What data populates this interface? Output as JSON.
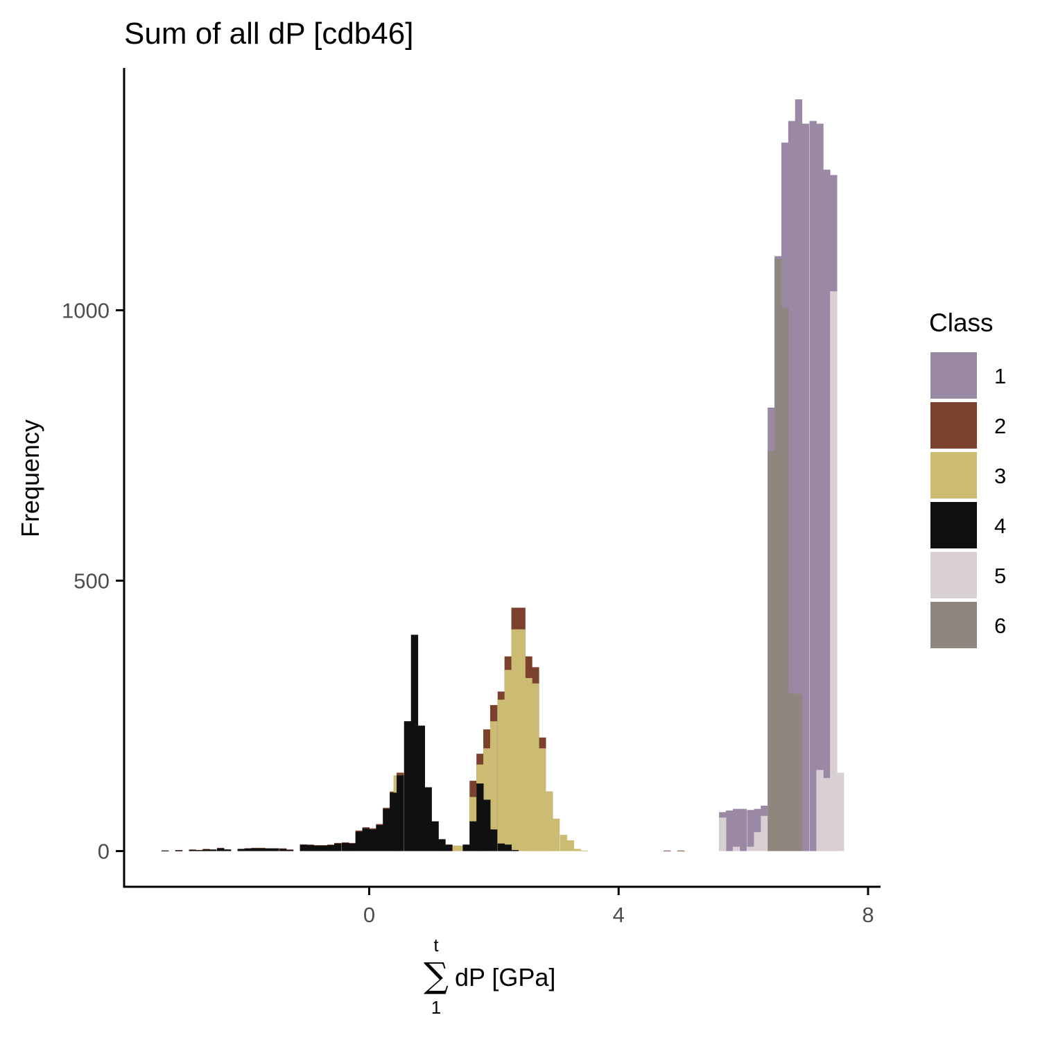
{
  "chart_data": {
    "type": "bar",
    "title": "Sum of all dP [cdb46]",
    "ylabel": "Frequency",
    "xlabel": {
      "sum_symbol": "∑",
      "upper_limit": "t",
      "lower_limit": "1",
      "text": "dP [GPa]"
    },
    "x_ticks": [
      {
        "value": 0,
        "label": "0"
      },
      {
        "value": 4,
        "label": "4"
      },
      {
        "value": 8,
        "label": "8"
      }
    ],
    "y_ticks": [
      {
        "value": 0,
        "label": "0"
      },
      {
        "value": 500,
        "label": "500"
      },
      {
        "value": 1000,
        "label": "1000"
      }
    ],
    "xlim": [
      -3.93,
      8.2
    ],
    "ylim": [
      -66,
      1448
    ],
    "bin_width": 0.111,
    "bar_mode": "overlapping (drawn in order)",
    "legend": {
      "title": "Class",
      "position": "right"
    },
    "series": [
      {
        "name": "1",
        "color": "#9b88a5",
        "bins": [
          [
            5.61,
            72
          ],
          [
            5.72,
            75
          ],
          [
            5.83,
            78
          ],
          [
            5.94,
            78
          ],
          [
            6.06,
            76
          ],
          [
            6.17,
            78
          ],
          [
            6.28,
            84
          ],
          [
            6.39,
            820
          ],
          [
            6.5,
            1100
          ],
          [
            6.61,
            1310
          ],
          [
            6.72,
            1350
          ],
          [
            6.83,
            1390
          ],
          [
            6.94,
            1345
          ],
          [
            7.06,
            1350
          ],
          [
            7.17,
            1345
          ],
          [
            7.28,
            1260
          ],
          [
            7.39,
            1250
          ]
        ]
      },
      {
        "name": "2",
        "color": "#7b412d",
        "bins": [
          [
            -3.33,
            1
          ],
          [
            -3.11,
            2
          ],
          [
            -2.89,
            3
          ],
          [
            -2.67,
            4
          ],
          [
            -2.44,
            6
          ],
          [
            -2.33,
            3
          ],
          [
            -2.11,
            4
          ],
          [
            -2.0,
            5
          ],
          [
            -1.89,
            6
          ],
          [
            -1.78,
            6
          ],
          [
            -1.67,
            5
          ],
          [
            -1.56,
            5
          ],
          [
            -1.44,
            5
          ],
          [
            -1.33,
            3
          ],
          [
            -1.11,
            12
          ],
          [
            -1.0,
            12
          ],
          [
            -0.89,
            11
          ],
          [
            -0.78,
            11
          ],
          [
            -0.67,
            12
          ],
          [
            -0.56,
            15
          ],
          [
            -0.44,
            16
          ],
          [
            -0.33,
            15
          ],
          [
            -0.22,
            38
          ],
          [
            -0.11,
            44
          ],
          [
            0.0,
            42
          ],
          [
            0.11,
            50
          ],
          [
            0.22,
            80
          ],
          [
            0.33,
            110
          ],
          [
            0.44,
            145
          ],
          [
            0.56,
            240
          ],
          [
            0.67,
            230
          ],
          [
            0.78,
            120
          ],
          [
            1.06,
            12
          ],
          [
            1.33,
            10
          ],
          [
            1.61,
            130
          ],
          [
            1.72,
            180
          ],
          [
            1.83,
            225
          ],
          [
            1.94,
            270
          ],
          [
            2.06,
            295
          ],
          [
            2.17,
            360
          ],
          [
            2.28,
            450
          ],
          [
            2.39,
            450
          ],
          [
            2.5,
            360
          ],
          [
            2.61,
            340
          ],
          [
            2.72,
            210
          ],
          [
            2.83,
            110
          ],
          [
            4.72,
            1
          ],
          [
            4.94,
            1
          ]
        ]
      },
      {
        "name": "3",
        "color": "#ccbb72",
        "bins": [
          [
            0.39,
            140
          ],
          [
            0.5,
            100
          ],
          [
            1.06,
            4
          ],
          [
            1.28,
            10
          ],
          [
            1.39,
            10
          ],
          [
            1.5,
            8
          ],
          [
            1.61,
            100
          ],
          [
            1.72,
            160
          ],
          [
            1.83,
            190
          ],
          [
            1.94,
            240
          ],
          [
            2.06,
            280
          ],
          [
            2.17,
            335
          ],
          [
            2.28,
            410
          ],
          [
            2.39,
            410
          ],
          [
            2.5,
            320
          ],
          [
            2.61,
            310
          ],
          [
            2.72,
            190
          ],
          [
            2.83,
            110
          ],
          [
            2.94,
            60
          ],
          [
            3.06,
            30
          ],
          [
            3.17,
            20
          ],
          [
            3.28,
            4
          ],
          [
            3.39,
            1
          ]
        ]
      },
      {
        "name": "4",
        "color": "#111010",
        "bins": [
          [
            -3.33,
            1
          ],
          [
            -3.11,
            1
          ],
          [
            -2.89,
            2
          ],
          [
            -2.78,
            2
          ],
          [
            -2.67,
            3
          ],
          [
            -2.56,
            3
          ],
          [
            -2.44,
            5
          ],
          [
            -2.33,
            3
          ],
          [
            -2.11,
            4
          ],
          [
            -2.0,
            5
          ],
          [
            -1.89,
            5
          ],
          [
            -1.78,
            5
          ],
          [
            -1.67,
            5
          ],
          [
            -1.56,
            5
          ],
          [
            -1.44,
            4
          ],
          [
            -1.33,
            2
          ],
          [
            -1.11,
            12
          ],
          [
            -1.0,
            11
          ],
          [
            -0.89,
            10
          ],
          [
            -0.78,
            10
          ],
          [
            -0.67,
            11
          ],
          [
            -0.56,
            14
          ],
          [
            -0.44,
            15
          ],
          [
            -0.33,
            14
          ],
          [
            -0.22,
            36
          ],
          [
            -0.11,
            42
          ],
          [
            0.0,
            40
          ],
          [
            0.11,
            48
          ],
          [
            0.22,
            78
          ],
          [
            0.33,
            108
          ],
          [
            0.44,
            140
          ],
          [
            0.56,
            240
          ],
          [
            0.67,
            400
          ],
          [
            0.78,
            232
          ],
          [
            0.89,
            118
          ],
          [
            1.0,
            55
          ],
          [
            1.11,
            22
          ],
          [
            1.22,
            12
          ],
          [
            1.5,
            12
          ],
          [
            1.61,
            55
          ],
          [
            1.72,
            125
          ],
          [
            1.83,
            95
          ],
          [
            1.94,
            40
          ],
          [
            2.06,
            14
          ],
          [
            2.17,
            12
          ],
          [
            2.28,
            2
          ]
        ]
      },
      {
        "name": "5",
        "color": "#d8d0d3",
        "bins": [
          [
            5.61,
            62
          ],
          [
            5.83,
            8
          ],
          [
            6.06,
            8
          ],
          [
            6.17,
            35
          ],
          [
            6.28,
            65
          ],
          [
            6.39,
            735
          ],
          [
            7.17,
            150
          ],
          [
            7.28,
            135
          ],
          [
            7.39,
            1035
          ],
          [
            7.5,
            145
          ]
        ]
      },
      {
        "name": "6",
        "color": "#8f8680",
        "bins": [
          [
            6.39,
            740
          ],
          [
            6.5,
            1095
          ],
          [
            6.61,
            1005
          ],
          [
            6.72,
            292
          ],
          [
            6.83,
            290
          ]
        ]
      }
    ]
  }
}
